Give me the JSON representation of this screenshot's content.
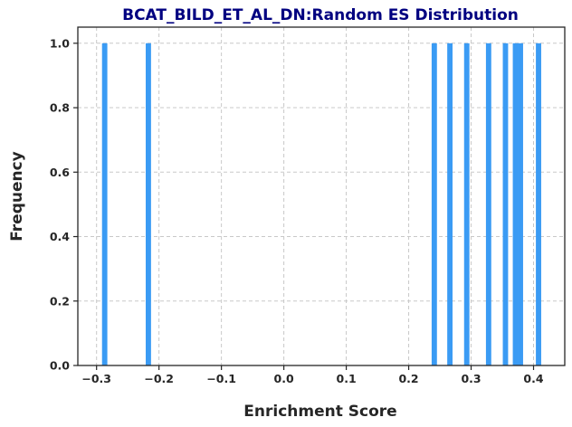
{
  "chart_data": {
    "type": "bar",
    "title": "BCAT_BILD_ET_AL_DN:Random ES Distribution",
    "xlabel": "Enrichment Score",
    "ylabel": "Frequency",
    "xlim": [
      -0.33,
      0.45
    ],
    "ylim": [
      0.0,
      1.05
    ],
    "x_ticks": [
      -0.3,
      -0.2,
      -0.1,
      0.0,
      0.1,
      0.2,
      0.3,
      0.4
    ],
    "x_tick_labels": [
      "−0.3",
      "−0.2",
      "−0.1",
      "0.0",
      "0.1",
      "0.2",
      "0.3",
      "0.4"
    ],
    "y_ticks": [
      0.0,
      0.2,
      0.4,
      0.6,
      0.8,
      1.0
    ],
    "y_tick_labels": [
      "0.0",
      "0.2",
      "0.4",
      "0.6",
      "0.8",
      "1.0"
    ],
    "bin_width": 0.0085,
    "bars": [
      {
        "x": -0.287,
        "value": 1.0
      },
      {
        "x": -0.217,
        "value": 1.0
      },
      {
        "x": 0.241,
        "value": 1.0
      },
      {
        "x": 0.266,
        "value": 1.0
      },
      {
        "x": 0.293,
        "value": 1.0
      },
      {
        "x": 0.328,
        "value": 1.0
      },
      {
        "x": 0.355,
        "value": 1.0
      },
      {
        "x": 0.371,
        "value": 1.0
      },
      {
        "x": 0.379,
        "value": 1.0
      },
      {
        "x": 0.408,
        "value": 1.0
      }
    ],
    "grid": true,
    "bar_color": "#3a9bf4",
    "title_color": "#000080"
  }
}
